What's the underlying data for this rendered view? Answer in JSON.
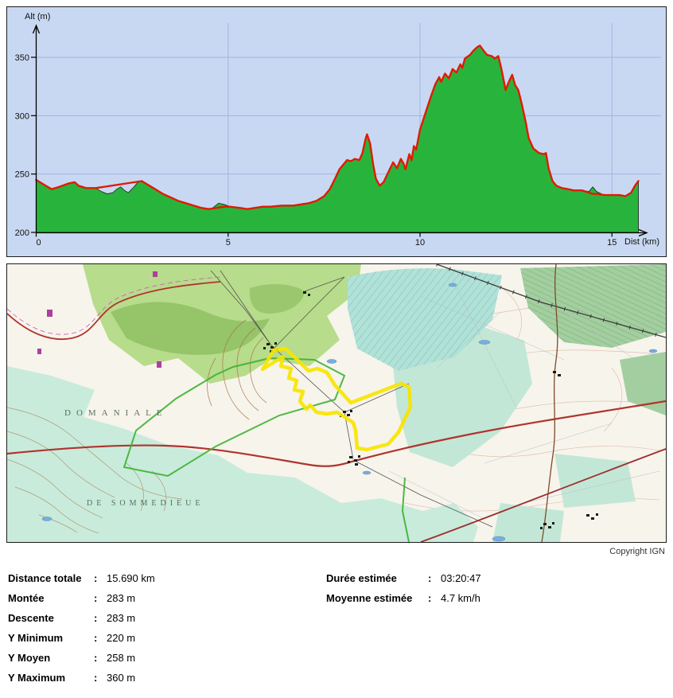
{
  "chart": {
    "y_axis_label": "Alt (m)",
    "x_axis_label": "Dist (km)",
    "y_ticks": [
      200,
      250,
      300,
      350
    ],
    "x_ticks": [
      0,
      5,
      10,
      15
    ],
    "colors": {
      "background": "#c9d8f2",
      "grid": "#9db4e4",
      "area_fill": "#28b43c",
      "area_outline": "#223322",
      "smoothed_line": "#e11b00",
      "axis": "#000000"
    }
  },
  "chart_data": {
    "type": "area",
    "title": "",
    "xlabel": "Dist (km)",
    "ylabel": "Alt (m)",
    "xlim": [
      0,
      16.4
    ],
    "ylim": [
      200,
      365
    ],
    "grid": true,
    "series": [
      {
        "name": "terrain",
        "color": "#28b43c",
        "points": [
          [
            0,
            245
          ],
          [
            0.2,
            241
          ],
          [
            0.4,
            237
          ],
          [
            0.6,
            239
          ],
          [
            0.85,
            242
          ],
          [
            1.0,
            243
          ],
          [
            1.1,
            240
          ],
          [
            1.3,
            238
          ],
          [
            1.55,
            238
          ],
          [
            1.7,
            235
          ],
          [
            1.85,
            233
          ],
          [
            2.0,
            234
          ],
          [
            2.1,
            237
          ],
          [
            2.2,
            239
          ],
          [
            2.3,
            236
          ],
          [
            2.4,
            234
          ],
          [
            2.55,
            239
          ],
          [
            2.65,
            243
          ],
          [
            2.75,
            244
          ],
          [
            2.95,
            240
          ],
          [
            3.1,
            237
          ],
          [
            3.3,
            233
          ],
          [
            3.5,
            230
          ],
          [
            3.7,
            227
          ],
          [
            3.9,
            225
          ],
          [
            4.1,
            223
          ],
          [
            4.3,
            221
          ],
          [
            4.5,
            220
          ],
          [
            4.6,
            221
          ],
          [
            4.75,
            225
          ],
          [
            4.9,
            224
          ],
          [
            5.05,
            222
          ],
          [
            5.3,
            221
          ],
          [
            5.5,
            220
          ],
          [
            5.7,
            221
          ],
          [
            5.9,
            222
          ],
          [
            6.1,
            222
          ],
          [
            6.4,
            223
          ],
          [
            6.7,
            223
          ],
          [
            6.9,
            224
          ],
          [
            7.1,
            225
          ],
          [
            7.3,
            227
          ],
          [
            7.5,
            231
          ],
          [
            7.65,
            237
          ],
          [
            7.8,
            247
          ],
          [
            7.9,
            254
          ],
          [
            8.0,
            258
          ],
          [
            8.1,
            262
          ],
          [
            8.2,
            261
          ],
          [
            8.3,
            263
          ],
          [
            8.42,
            262
          ],
          [
            8.5,
            268
          ],
          [
            8.58,
            280
          ],
          [
            8.62,
            284
          ],
          [
            8.7,
            276
          ],
          [
            8.78,
            258
          ],
          [
            8.85,
            246
          ],
          [
            8.95,
            240
          ],
          [
            9.05,
            243
          ],
          [
            9.15,
            250
          ],
          [
            9.24,
            256
          ],
          [
            9.3,
            260
          ],
          [
            9.4,
            255
          ],
          [
            9.5,
            263
          ],
          [
            9.57,
            259
          ],
          [
            9.62,
            254
          ],
          [
            9.68,
            262
          ],
          [
            9.72,
            267
          ],
          [
            9.78,
            262
          ],
          [
            9.84,
            274
          ],
          [
            9.9,
            271
          ],
          [
            10.0,
            288
          ],
          [
            10.1,
            298
          ],
          [
            10.2,
            308
          ],
          [
            10.3,
            318
          ],
          [
            10.4,
            327
          ],
          [
            10.5,
            333
          ],
          [
            10.55,
            329
          ],
          [
            10.65,
            336
          ],
          [
            10.75,
            332
          ],
          [
            10.85,
            340
          ],
          [
            10.95,
            337
          ],
          [
            11.05,
            344
          ],
          [
            11.1,
            341
          ],
          [
            11.17,
            349
          ],
          [
            11.3,
            352
          ],
          [
            11.4,
            356
          ],
          [
            11.5,
            359
          ],
          [
            11.56,
            360
          ],
          [
            11.65,
            356
          ],
          [
            11.75,
            352
          ],
          [
            11.87,
            351
          ],
          [
            11.95,
            349
          ],
          [
            12.04,
            351
          ],
          [
            12.12,
            340
          ],
          [
            12.23,
            322
          ],
          [
            12.3,
            328
          ],
          [
            12.4,
            335
          ],
          [
            12.48,
            326
          ],
          [
            12.56,
            322
          ],
          [
            12.65,
            310
          ],
          [
            12.75,
            295
          ],
          [
            12.83,
            281
          ],
          [
            12.95,
            272
          ],
          [
            13.1,
            268
          ],
          [
            13.22,
            267
          ],
          [
            13.28,
            268
          ],
          [
            13.35,
            255
          ],
          [
            13.45,
            244
          ],
          [
            13.55,
            240
          ],
          [
            13.7,
            238
          ],
          [
            13.86,
            237
          ],
          [
            14.0,
            236
          ],
          [
            14.22,
            236
          ],
          [
            14.4,
            235
          ],
          [
            14.5,
            239
          ],
          [
            14.6,
            235
          ],
          [
            14.8,
            232
          ],
          [
            15.0,
            232
          ],
          [
            15.2,
            232
          ],
          [
            15.35,
            231
          ],
          [
            15.5,
            234
          ],
          [
            15.6,
            240
          ],
          [
            15.69,
            244
          ]
        ]
      },
      {
        "name": "lisse",
        "color": "#e11b00",
        "points": [
          [
            0,
            245
          ],
          [
            0.2,
            241
          ],
          [
            0.4,
            237
          ],
          [
            0.6,
            239
          ],
          [
            0.85,
            242
          ],
          [
            1.0,
            243
          ],
          [
            1.1,
            240
          ],
          [
            1.3,
            238
          ],
          [
            1.55,
            238
          ],
          [
            2.75,
            244
          ],
          [
            2.95,
            240
          ],
          [
            3.1,
            237
          ],
          [
            3.3,
            233
          ],
          [
            3.5,
            230
          ],
          [
            3.7,
            227
          ],
          [
            3.9,
            225
          ],
          [
            4.1,
            223
          ],
          [
            4.3,
            221
          ],
          [
            4.5,
            220
          ],
          [
            4.7,
            221
          ],
          [
            4.9,
            222
          ],
          [
            5.05,
            222
          ],
          [
            5.3,
            221
          ],
          [
            5.5,
            220
          ],
          [
            5.7,
            221
          ],
          [
            5.9,
            222
          ],
          [
            6.1,
            222
          ],
          [
            6.4,
            223
          ],
          [
            6.7,
            223
          ],
          [
            6.9,
            224
          ],
          [
            7.1,
            225
          ],
          [
            7.3,
            227
          ],
          [
            7.5,
            231
          ],
          [
            7.65,
            237
          ],
          [
            7.8,
            247
          ],
          [
            7.9,
            254
          ],
          [
            8.0,
            258
          ],
          [
            8.1,
            262
          ],
          [
            8.2,
            261
          ],
          [
            8.3,
            263
          ],
          [
            8.42,
            262
          ],
          [
            8.5,
            268
          ],
          [
            8.58,
            280
          ],
          [
            8.62,
            284
          ],
          [
            8.7,
            276
          ],
          [
            8.78,
            258
          ],
          [
            8.85,
            246
          ],
          [
            8.95,
            240
          ],
          [
            9.05,
            243
          ],
          [
            9.15,
            250
          ],
          [
            9.24,
            256
          ],
          [
            9.3,
            260
          ],
          [
            9.4,
            255
          ],
          [
            9.5,
            263
          ],
          [
            9.57,
            259
          ],
          [
            9.62,
            254
          ],
          [
            9.68,
            262
          ],
          [
            9.72,
            267
          ],
          [
            9.78,
            262
          ],
          [
            9.84,
            274
          ],
          [
            9.9,
            271
          ],
          [
            10.0,
            288
          ],
          [
            10.1,
            298
          ],
          [
            10.2,
            308
          ],
          [
            10.3,
            318
          ],
          [
            10.4,
            327
          ],
          [
            10.5,
            333
          ],
          [
            10.55,
            329
          ],
          [
            10.65,
            336
          ],
          [
            10.75,
            332
          ],
          [
            10.85,
            340
          ],
          [
            10.95,
            337
          ],
          [
            11.05,
            344
          ],
          [
            11.1,
            341
          ],
          [
            11.17,
            349
          ],
          [
            11.3,
            352
          ],
          [
            11.4,
            356
          ],
          [
            11.5,
            359
          ],
          [
            11.56,
            360
          ],
          [
            11.65,
            356
          ],
          [
            11.75,
            352
          ],
          [
            11.87,
            351
          ],
          [
            11.95,
            349
          ],
          [
            12.04,
            351
          ],
          [
            12.12,
            340
          ],
          [
            12.23,
            322
          ],
          [
            12.3,
            328
          ],
          [
            12.4,
            335
          ],
          [
            12.48,
            326
          ],
          [
            12.56,
            322
          ],
          [
            12.65,
            310
          ],
          [
            12.75,
            295
          ],
          [
            12.83,
            281
          ],
          [
            12.95,
            272
          ],
          [
            13.1,
            268
          ],
          [
            13.22,
            267
          ],
          [
            13.28,
            268
          ],
          [
            13.35,
            255
          ],
          [
            13.45,
            244
          ],
          [
            13.55,
            240
          ],
          [
            13.7,
            238
          ],
          [
            13.86,
            237
          ],
          [
            14.0,
            236
          ],
          [
            14.22,
            236
          ],
          [
            14.4,
            234
          ],
          [
            14.5,
            233
          ],
          [
            14.6,
            233
          ],
          [
            14.8,
            232
          ],
          [
            15.0,
            232
          ],
          [
            15.2,
            232
          ],
          [
            15.35,
            231
          ],
          [
            15.5,
            234
          ],
          [
            15.6,
            240
          ],
          [
            15.69,
            244
          ]
        ]
      }
    ]
  },
  "map": {
    "copyright": "Copyright IGN",
    "route_color": "#f7e400",
    "labels": {
      "forest1": "DOMANIALE",
      "forest2": "DE SOMMEDIEUE"
    }
  },
  "stats": {
    "colon": ":",
    "left": [
      {
        "label": "Distance totale",
        "value": "15.690 km"
      },
      {
        "label": "Montée",
        "value": "283 m"
      },
      {
        "label": "Descente",
        "value": "283 m"
      },
      {
        "label": "Y Minimum",
        "value": "220 m"
      },
      {
        "label": "Y Moyen",
        "value": "258 m"
      },
      {
        "label": "Y Maximum",
        "value": "360 m"
      }
    ],
    "right": [
      {
        "label": "Durée estimée",
        "value": "03:20:47"
      },
      {
        "label": "Moyenne estimée",
        "value": "4.7 km/h"
      }
    ]
  }
}
